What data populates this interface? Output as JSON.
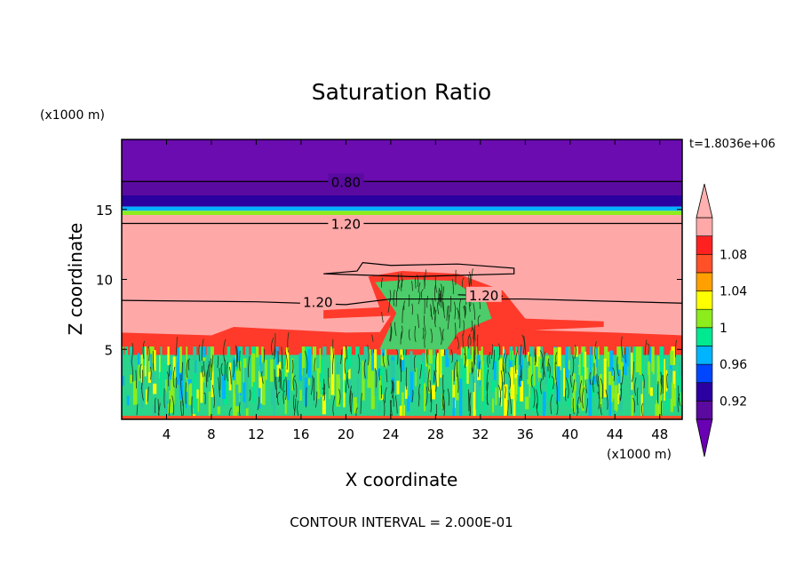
{
  "chart_data": {
    "type": "heatmap",
    "title": "Saturation Ratio",
    "xlabel": "X coordinate",
    "ylabel": "Z coordinate",
    "x_unit": "(x1000 m)",
    "y_unit": "(x1000 m)",
    "time_label": "t=1.8036e+06",
    "footer": "CONTOUR INTERVAL = 2.000E-01",
    "xlim": [
      0,
      50
    ],
    "ylim": [
      0,
      20
    ],
    "x_ticks": [
      4,
      8,
      12,
      16,
      20,
      24,
      28,
      32,
      36,
      40,
      44,
      48
    ],
    "y_ticks": [
      5,
      10,
      15
    ],
    "contour_levels": [
      {
        "label": "0.80",
        "z": 17.0
      },
      {
        "label": "1.20",
        "z": 14.0
      },
      {
        "label": "1.20",
        "z": 8.4
      },
      {
        "label": "1.20",
        "z": 8.8
      }
    ],
    "colorbar": {
      "labels": [
        "1.08",
        "1.04",
        "1",
        "0.96",
        "0.92"
      ],
      "bands": [
        {
          "lower": 0.9,
          "color": "#5a0a9e"
        },
        {
          "lower": 0.92,
          "color": "#2a00a0"
        },
        {
          "lower": 0.94,
          "color": "#0046ff"
        },
        {
          "lower": 0.96,
          "color": "#00b4ff"
        },
        {
          "lower": 0.98,
          "color": "#00e890"
        },
        {
          "lower": 1.0,
          "color": "#8cec1c"
        },
        {
          "lower": 1.02,
          "color": "#ffff00"
        },
        {
          "lower": 1.04,
          "color": "#ffa000"
        },
        {
          "lower": 1.06,
          "color": "#ff5028"
        },
        {
          "lower": 1.08,
          "color": "#ff2020"
        },
        {
          "lower": 1.1,
          "color": "#ffa8a8"
        }
      ],
      "under_color": "#6a00b4",
      "over_color": "#ffb0b0"
    },
    "layers": [
      {
        "z_bottom": 17.0,
        "z_top": 20.0,
        "value": "< 0.90",
        "color": "#6a0cb0"
      },
      {
        "z_bottom": 16.0,
        "z_top": 17.0,
        "value": "< 0.90",
        "color": "#5a0aa0"
      },
      {
        "z_bottom": 15.2,
        "z_top": 16.0,
        "value": "0.92",
        "color": "#2a00a0"
      },
      {
        "z_bottom": 14.9,
        "z_top": 15.2,
        "value": "0.96",
        "color": "#00b4ff"
      },
      {
        "z_bottom": 14.6,
        "z_top": 14.9,
        "value": "1",
        "color": "#8cec1c"
      },
      {
        "z_bottom": 5.0,
        "z_top": 14.6,
        "value": "> 1.10",
        "color": "#ffa8a8"
      },
      {
        "z_bottom": 0.0,
        "z_top": 5.0,
        "value": "0.98 - 1.02",
        "color": "#2ad48a"
      }
    ]
  }
}
